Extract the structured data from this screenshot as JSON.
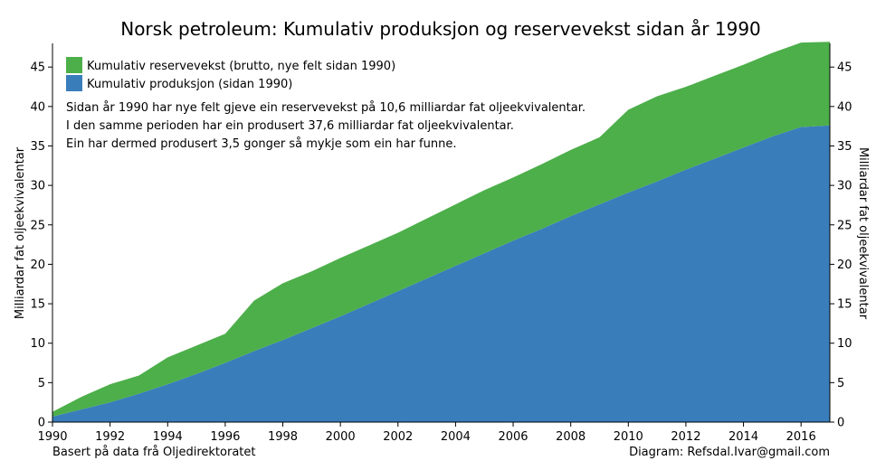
{
  "chart_data": {
    "type": "area",
    "stacked": true,
    "title": "Norsk petroleum: Kumulativ produksjon og reservevekst sidan år 1990",
    "ylabel_left": "Milliardar fat oljeekvivalentar",
    "ylabel_right": "Milliardar fat oljeekvivalentar",
    "xlim": [
      1990,
      2017
    ],
    "ylim": [
      0,
      48
    ],
    "x_ticks": [
      1990,
      1992,
      1994,
      1996,
      1998,
      2000,
      2002,
      2004,
      2006,
      2008,
      2010,
      2012,
      2014,
      2016
    ],
    "y_ticks": [
      0,
      5,
      10,
      15,
      20,
      25,
      30,
      35,
      40,
      45
    ],
    "grid": false,
    "legend_position": "top-left",
    "x": [
      1990,
      1991,
      1992,
      1993,
      1994,
      1995,
      1996,
      1997,
      1998,
      1999,
      2000,
      2001,
      2002,
      2003,
      2004,
      2005,
      2006,
      2007,
      2008,
      2009,
      2010,
      2011,
      2012,
      2013,
      2014,
      2015,
      2016,
      2017
    ],
    "series": [
      {
        "name": "Kumulativ produksjon (sidan 1990)",
        "color": "#3a7dbb",
        "values": [
          0.7,
          1.6,
          2.5,
          3.6,
          4.8,
          6.1,
          7.5,
          9.0,
          10.4,
          11.9,
          13.4,
          15.0,
          16.6,
          18.2,
          19.8,
          21.4,
          23.0,
          24.5,
          26.1,
          27.6,
          29.1,
          30.5,
          32.0,
          33.4,
          34.8,
          36.2,
          37.4,
          37.6
        ]
      },
      {
        "name": "Kumulativ reservevekst (brutto, nye felt sidan 1990)",
        "color": "#4daf4a",
        "values": [
          0.6,
          1.6,
          2.3,
          2.3,
          3.4,
          3.6,
          3.7,
          6.4,
          7.2,
          7.2,
          7.4,
          7.4,
          7.4,
          7.6,
          7.8,
          8.0,
          8.0,
          8.2,
          8.4,
          8.5,
          10.5,
          10.8,
          10.5,
          10.5,
          10.5,
          10.6,
          10.7,
          10.6
        ]
      }
    ],
    "annotation_lines": [
      "Sidan år 1990 har nye felt gjeve ein reservevekst på 10,6 milliardar fat oljeekvivalentar.",
      "I den samme perioden har ein produsert 37,6 milliardar fat oljeekvivalentar.",
      "Ein har dermed produsert 3,5 gonger så mykje som ein har funne."
    ]
  },
  "footer": {
    "source": "Basert på data frå Oljedirektoratet",
    "credit": "Diagram: Refsdal.Ivar@gmail.com"
  }
}
